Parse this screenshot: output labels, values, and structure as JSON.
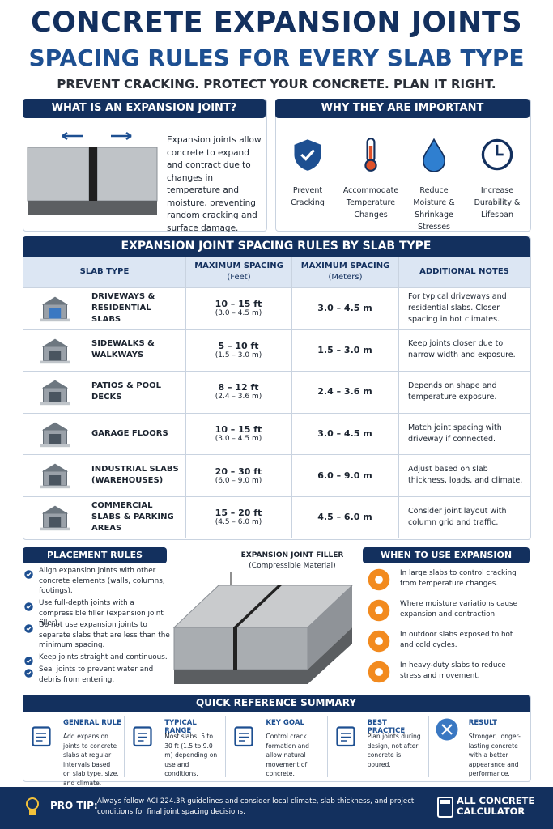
{
  "header": {
    "title": "CONCRETE EXPANSION JOINTS",
    "subtitle": "SPACING RULES FOR EVERY SLAB TYPE",
    "tagline": "PREVENT CRACKING. PROTECT YOUR CONCRETE. PLAN IT RIGHT."
  },
  "what": {
    "heading": "WHAT IS AN EXPANSION JOINT?",
    "text": "Expansion joints allow concrete to expand and contract due to changes in temperature and moisture, preventing random cracking and surface damage."
  },
  "why": {
    "heading": "WHY THEY ARE IMPORTANT",
    "items": [
      "Prevent Cracking",
      "Accommodate Temperature Changes",
      "Reduce Moisture & Shrinkage Stresses",
      "Increase Durability & Lifespan"
    ]
  },
  "table": {
    "title": "EXPANSION JOINT SPACING RULES BY SLAB TYPE",
    "headers": [
      {
        "label": "SLAB TYPE"
      },
      {
        "label": "MAXIMUM SPACING",
        "unit": "(Feet)"
      },
      {
        "label": "MAXIMUM SPACING",
        "unit": "(Meters)"
      },
      {
        "label": "ADDITIONAL NOTES"
      }
    ],
    "rows": [
      {
        "type": "DRIVEWAYS & RESIDENTIAL SLABS",
        "feet": "10 – 15 ft",
        "feet_metric": "(3.0 – 4.5 m)",
        "meters": "3.0 – 4.5 m",
        "notes": "For typical driveways and residential slabs. Closer spacing in hot climates."
      },
      {
        "type": "SIDEWALKS & WALKWAYS",
        "feet": "5 – 10 ft",
        "feet_metric": "(1.5 – 3.0 m)",
        "meters": "1.5 – 3.0 m",
        "notes": "Keep joints closer due to narrow width and exposure."
      },
      {
        "type": "PATIOS & POOL DECKS",
        "feet": "8 – 12 ft",
        "feet_metric": "(2.4 – 3.6 m)",
        "meters": "2.4 – 3.6 m",
        "notes": "Depends on shape and temperature exposure."
      },
      {
        "type": "GARAGE FLOORS",
        "feet": "10 – 15 ft",
        "feet_metric": "(3.0 – 4.5 m)",
        "meters": "3.0 – 4.5 m",
        "notes": "Match joint spacing with driveway if connected."
      },
      {
        "type": "INDUSTRIAL SLABS (WAREHOUSES)",
        "feet": "20 – 30 ft",
        "feet_metric": "(6.0 – 9.0 m)",
        "meters": "6.0 – 9.0 m",
        "notes": "Adjust based on slab thickness, loads, and climate."
      },
      {
        "type": "COMMERCIAL SLABS & PARKING AREAS",
        "feet": "15 – 20 ft",
        "feet_metric": "(4.5 – 6.0 m)",
        "meters": "4.5 – 6.0 m",
        "notes": "Consider joint layout with column grid and traffic."
      }
    ]
  },
  "placement": {
    "heading": "PLACEMENT RULES",
    "items": [
      "Align expansion joints with other concrete elements (walls, columns, footings).",
      "Use full-depth joints with a compressible filler (expansion joint filler).",
      "Do not use expansion joints to separate slabs that are less than the minimum spacing.",
      "Keep joints straight and continuous.",
      "Seal joints to prevent water and debris from entering."
    ]
  },
  "filler": {
    "label": "EXPANSION JOINT FILLER",
    "sublabel": "(Compressible Material)"
  },
  "when": {
    "heading": "WHEN TO USE EXPANSION JOINTS",
    "items": [
      "In large slabs to control cracking from temperature changes.",
      "Where moisture variations cause expansion and contraction.",
      "In outdoor slabs exposed to hot and cold cycles.",
      "In heavy-duty slabs to reduce stress and movement."
    ]
  },
  "summary": {
    "heading": "QUICK REFERENCE SUMMARY",
    "items": [
      {
        "title": "GENERAL RULE",
        "text": "Add expansion joints to concrete slabs at regular intervals based on slab type, size, and climate."
      },
      {
        "title": "TYPICAL RANGE",
        "text": "Most slabs: 5 to 30 ft (1.5 to 9.0 m) depending on use and conditions."
      },
      {
        "title": "KEY GOAL",
        "text": "Control crack formation and allow natural movement of concrete."
      },
      {
        "title": "BEST PRACTICE",
        "text": "Plan joints during design, not after concrete is poured."
      },
      {
        "title": "RESULT",
        "text": "Stronger, longer-lasting concrete with a better appearance and performance."
      }
    ]
  },
  "footer": {
    "tip_label": "PRO TIP:",
    "tip_text": "Always follow ACI 224.3R guidelines and consider local climate, slab thickness, and project conditions for final joint spacing decisions.",
    "brand": "ALL CONCRETE CALCULATOR"
  }
}
